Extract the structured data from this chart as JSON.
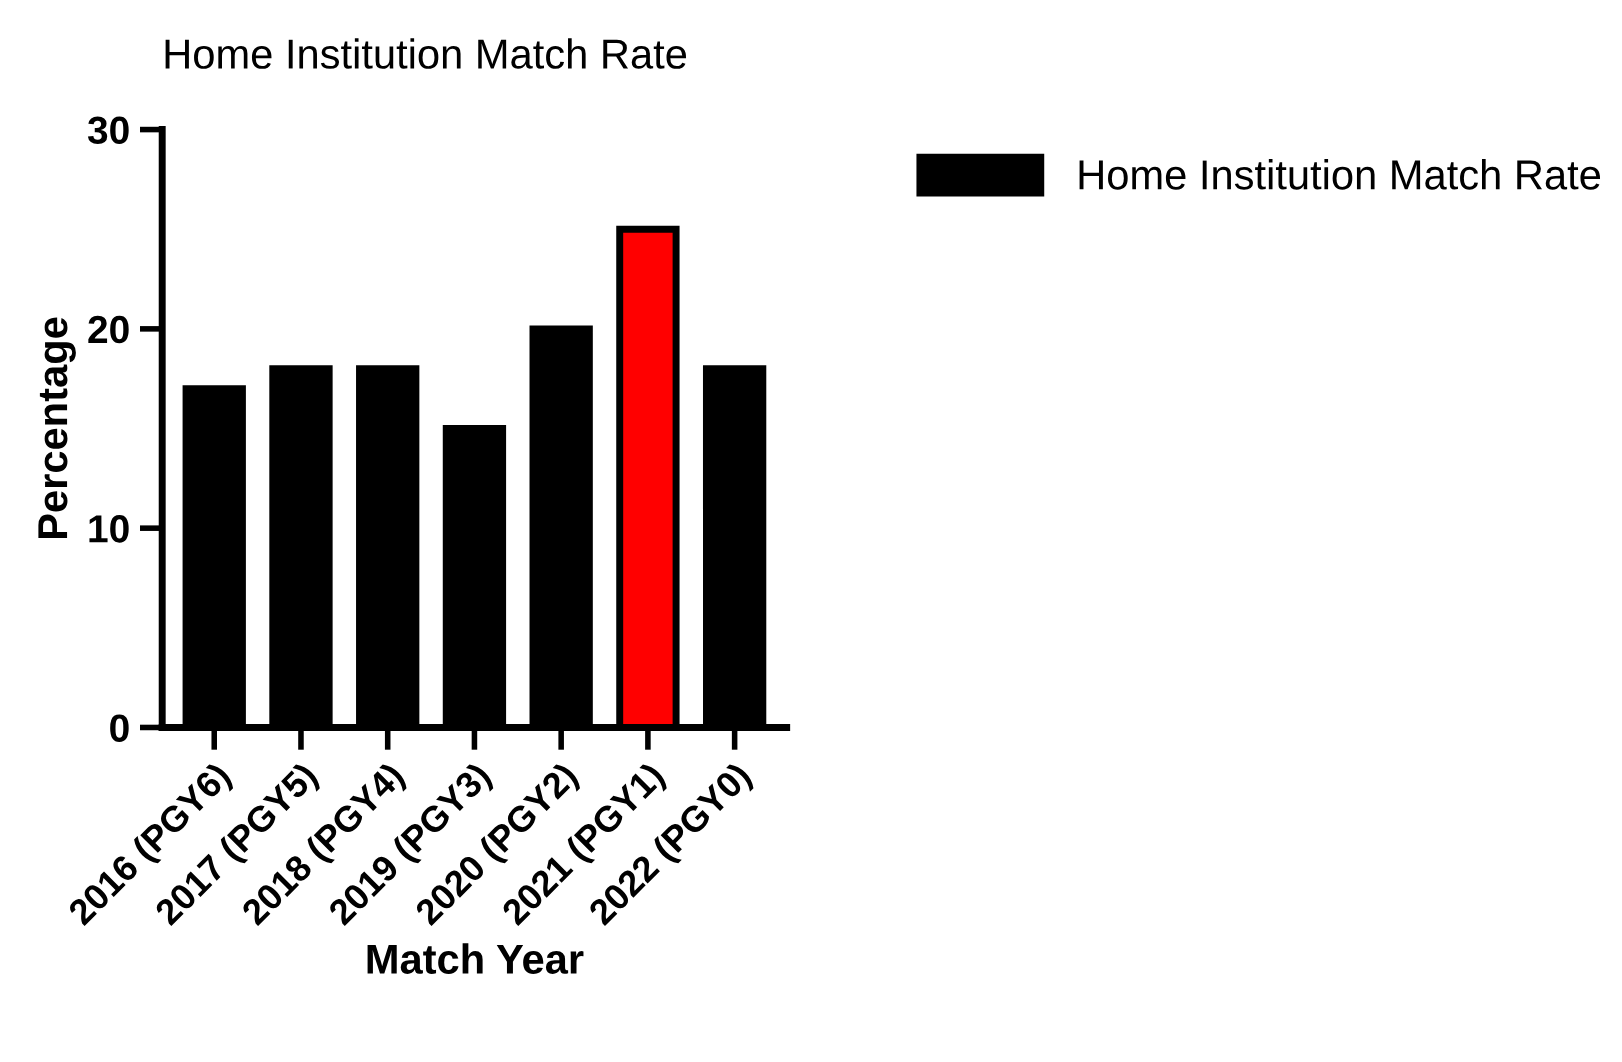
{
  "chart_data": {
    "type": "bar",
    "title": "Home Institution Match Rate",
    "xlabel": "Match Year",
    "ylabel": "Percentage",
    "categories": [
      "2016 (PGY6)",
      "2017 (PGY5)",
      "2018 (PGY4)",
      "2019 (PGY3)",
      "2020 (PGY2)",
      "2021 (PGY1)",
      "2022 (PGY0)"
    ],
    "series": [
      {
        "name": "Home Institution Match Rate",
        "color": "#000000",
        "values": [
          17,
          18,
          18,
          15,
          20,
          25,
          18
        ],
        "colors": [
          "#000000",
          "#000000",
          "#000000",
          "#000000",
          "#000000",
          "#ff0000",
          "#000000"
        ]
      }
    ],
    "ylim": [
      0,
      30
    ],
    "yticks": [
      0,
      10,
      20,
      30
    ],
    "grid": false,
    "legend": "top right"
  }
}
